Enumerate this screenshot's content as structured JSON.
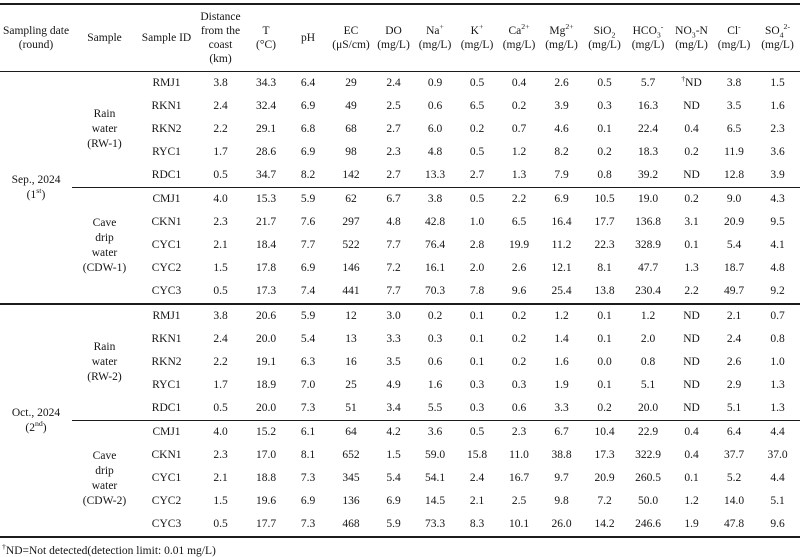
{
  "page": {
    "footnote": "^{†}ND=Not detected(detection limit: 0.01 mg/L)"
  },
  "table": {
    "columns": [
      {
        "name": "sampling-date",
        "line1": "Sampling date (round)",
        "line2": ""
      },
      {
        "name": "sample",
        "line1": "Sample",
        "line2": ""
      },
      {
        "name": "sample-id",
        "line1": "Sample ID",
        "line2": ""
      },
      {
        "name": "distance-from-coast",
        "line1": "Distance from the coast (km)",
        "line2": ""
      },
      {
        "name": "temperature",
        "line1": "T",
        "line2": "(°C)"
      },
      {
        "name": "ph",
        "line1": "pH",
        "line2": ""
      },
      {
        "name": "ec",
        "line1": "EC",
        "line2": "(μS/cm)"
      },
      {
        "name": "do",
        "line1": "DO",
        "line2": "(mg/L)"
      },
      {
        "name": "na",
        "line1": "Na^{+}",
        "line2": "(mg/L)"
      },
      {
        "name": "k",
        "line1": "K^{+}",
        "line2": "(mg/L)"
      },
      {
        "name": "ca",
        "line1": "Ca^{2+}",
        "line2": "(mg/L)"
      },
      {
        "name": "mg",
        "line1": "Mg^{2+}",
        "line2": "(mg/L)"
      },
      {
        "name": "sio2",
        "line1": "SiO_{2}",
        "line2": "(mg/L)"
      },
      {
        "name": "hco3",
        "line1": "HCO_{3}^{-}",
        "line2": "(mg/L)"
      },
      {
        "name": "no3n",
        "line1": "NO_{3}-N",
        "line2": "(mg/L)"
      },
      {
        "name": "cl",
        "line1": "Cl^{-}",
        "line2": "(mg/L)"
      },
      {
        "name": "so4",
        "line1": "SO_{4}^{2-}",
        "line2": "(mg/L)"
      }
    ],
    "sections": [
      {
        "date_line1": "Sep., 2024",
        "date_line2": "(1^{st})",
        "groups": [
          {
            "sample_label": "Rain\nwater\n(RW-1)",
            "rows": [
              {
                "id": "RMJ1",
                "values": [
                  "3.8",
                  "34.3",
                  "6.4",
                  "29",
                  "2.4",
                  "0.9",
                  "0.5",
                  "0.4",
                  "2.6",
                  "0.5",
                  "5.7",
                  "^{†}ND",
                  "3.8",
                  "1.5"
                ]
              },
              {
                "id": "RKN1",
                "values": [
                  "2.4",
                  "32.4",
                  "6.9",
                  "49",
                  "2.5",
                  "0.6",
                  "6.5",
                  "0.2",
                  "3.9",
                  "0.3",
                  "16.3",
                  "ND",
                  "3.5",
                  "1.6"
                ]
              },
              {
                "id": "RKN2",
                "values": [
                  "2.2",
                  "29.1",
                  "6.8",
                  "68",
                  "2.7",
                  "6.0",
                  "0.2",
                  "0.7",
                  "4.6",
                  "0.1",
                  "22.4",
                  "0.4",
                  "6.5",
                  "2.3"
                ]
              },
              {
                "id": "RYC1",
                "values": [
                  "1.7",
                  "28.6",
                  "6.9",
                  "98",
                  "2.3",
                  "4.8",
                  "0.5",
                  "1.2",
                  "8.2",
                  "0.2",
                  "18.3",
                  "0.2",
                  "11.9",
                  "3.6"
                ]
              },
              {
                "id": "RDC1",
                "values": [
                  "0.5",
                  "34.7",
                  "8.2",
                  "142",
                  "2.7",
                  "13.3",
                  "2.7",
                  "1.3",
                  "7.9",
                  "0.8",
                  "39.2",
                  "ND",
                  "12.8",
                  "3.9"
                ]
              }
            ]
          },
          {
            "sample_label": "Cave\ndrip\nwater\n(CDW-1)",
            "rows": [
              {
                "id": "CMJ1",
                "values": [
                  "4.0",
                  "15.3",
                  "5.9",
                  "62",
                  "6.7",
                  "3.8",
                  "0.5",
                  "2.2",
                  "6.9",
                  "10.5",
                  "19.0",
                  "0.2",
                  "9.0",
                  "4.3"
                ]
              },
              {
                "id": "CKN1",
                "values": [
                  "2.3",
                  "21.7",
                  "7.6",
                  "297",
                  "4.8",
                  "42.8",
                  "1.0",
                  "6.5",
                  "16.4",
                  "17.7",
                  "136.8",
                  "3.1",
                  "20.9",
                  "9.5"
                ]
              },
              {
                "id": "CYC1",
                "values": [
                  "2.1",
                  "18.4",
                  "7.7",
                  "522",
                  "7.7",
                  "76.4",
                  "2.8",
                  "19.9",
                  "11.2",
                  "22.3",
                  "328.9",
                  "0.1",
                  "5.4",
                  "4.1"
                ]
              },
              {
                "id": "CYC2",
                "values": [
                  "1.5",
                  "17.8",
                  "6.9",
                  "146",
                  "7.2",
                  "16.1",
                  "2.0",
                  "2.6",
                  "12.1",
                  "8.1",
                  "47.7",
                  "1.3",
                  "18.7",
                  "4.8"
                ]
              },
              {
                "id": "CYC3",
                "values": [
                  "0.5",
                  "17.3",
                  "7.4",
                  "441",
                  "7.7",
                  "70.3",
                  "7.8",
                  "9.6",
                  "25.4",
                  "13.8",
                  "230.4",
                  "2.2",
                  "49.7",
                  "9.2"
                ]
              }
            ]
          }
        ]
      },
      {
        "date_line1": "Oct., 2024",
        "date_line2": "(2^{nd})",
        "groups": [
          {
            "sample_label": "Rain\nwater\n(RW-2)",
            "rows": [
              {
                "id": "RMJ1",
                "values": [
                  "3.8",
                  "20.6",
                  "5.9",
                  "12",
                  "3.0",
                  "0.2",
                  "0.1",
                  "0.2",
                  "1.2",
                  "0.1",
                  "1.2",
                  "ND",
                  "2.1",
                  "0.7"
                ]
              },
              {
                "id": "RKN1",
                "values": [
                  "2.4",
                  "20.0",
                  "5.4",
                  "13",
                  "3.3",
                  "0.3",
                  "0.1",
                  "0.2",
                  "1.4",
                  "0.1",
                  "2.0",
                  "ND",
                  "2.4",
                  "0.8"
                ]
              },
              {
                "id": "RKN2",
                "values": [
                  "2.2",
                  "19.1",
                  "6.3",
                  "16",
                  "3.5",
                  "0.6",
                  "0.1",
                  "0.2",
                  "1.6",
                  "0.0",
                  "0.8",
                  "ND",
                  "2.6",
                  "1.0"
                ]
              },
              {
                "id": "RYC1",
                "values": [
                  "1.7",
                  "18.9",
                  "7.0",
                  "25",
                  "4.9",
                  "1.6",
                  "0.3",
                  "0.3",
                  "1.9",
                  "0.1",
                  "5.1",
                  "ND",
                  "2.9",
                  "1.3"
                ]
              },
              {
                "id": "RDC1",
                "values": [
                  "0.5",
                  "20.0",
                  "7.3",
                  "51",
                  "3.4",
                  "5.5",
                  "0.3",
                  "0.6",
                  "3.3",
                  "0.2",
                  "20.0",
                  "ND",
                  "5.1",
                  "1.3"
                ]
              }
            ]
          },
          {
            "sample_label": "Cave\ndrip\nwater\n(CDW-2)",
            "rows": [
              {
                "id": "CMJ1",
                "values": [
                  "4.0",
                  "15.2",
                  "6.1",
                  "64",
                  "4.2",
                  "3.6",
                  "0.5",
                  "2.3",
                  "6.7",
                  "10.4",
                  "22.9",
                  "0.4",
                  "6.4",
                  "4.4"
                ]
              },
              {
                "id": "CKN1",
                "values": [
                  "2.3",
                  "17.0",
                  "8.1",
                  "652",
                  "1.5",
                  "59.0",
                  "15.8",
                  "11.0",
                  "38.8",
                  "17.3",
                  "322.9",
                  "0.4",
                  "37.7",
                  "37.0"
                ]
              },
              {
                "id": "CYC1",
                "values": [
                  "2.1",
                  "18.8",
                  "7.3",
                  "345",
                  "5.4",
                  "54.1",
                  "2.4",
                  "16.7",
                  "9.7",
                  "20.9",
                  "260.5",
                  "0.1",
                  "5.2",
                  "4.4"
                ]
              },
              {
                "id": "CYC2",
                "values": [
                  "1.5",
                  "19.6",
                  "6.9",
                  "136",
                  "6.9",
                  "14.5",
                  "2.1",
                  "2.5",
                  "9.8",
                  "7.2",
                  "50.0",
                  "1.2",
                  "14.0",
                  "5.1"
                ]
              },
              {
                "id": "CYC3",
                "values": [
                  "0.5",
                  "17.7",
                  "7.3",
                  "468",
                  "5.9",
                  "73.3",
                  "8.3",
                  "10.1",
                  "26.0",
                  "14.2",
                  "246.6",
                  "1.9",
                  "47.8",
                  "9.6"
                ]
              }
            ]
          }
        ]
      }
    ]
  }
}
